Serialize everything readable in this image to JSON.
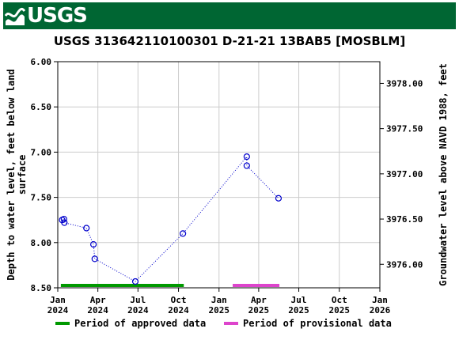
{
  "header": {
    "logo_text": "USGS",
    "brand_color": "#006633"
  },
  "chart_data": {
    "type": "scatter",
    "title": "USGS 313642110100301 D-21-21 13BAB5 [MOSBLM]",
    "ylabel_left": "Depth to water level, feet below land surface",
    "ylabel_left_line1": "Depth to water level, feet below land",
    "ylabel_left_line2": "surface",
    "ylabel_right": "Groundwater level above NAVD 1988, feet",
    "ylim_left": [
      8.5,
      6.0
    ],
    "left_axis_inverted": true,
    "left_ticks": [
      "6.00",
      "6.50",
      "7.00",
      "7.50",
      "8.00",
      "8.50"
    ],
    "right_ticks": [
      "3978.00",
      "3977.50",
      "3977.00",
      "3976.50",
      "3976.00"
    ],
    "right_tick_values": [
      3978.0,
      3977.5,
      3977.0,
      3976.5,
      3976.0
    ],
    "x_ticks": [
      {
        "month": "Jan",
        "year": "2024",
        "date": "2024-01-01"
      },
      {
        "month": "Apr",
        "year": "2024",
        "date": "2024-04-01"
      },
      {
        "month": "Jul",
        "year": "2024",
        "date": "2024-07-01"
      },
      {
        "month": "Oct",
        "year": "2024",
        "date": "2024-10-01"
      },
      {
        "month": "Jan",
        "year": "2025",
        "date": "2025-01-01"
      },
      {
        "month": "Apr",
        "year": "2025",
        "date": "2025-04-01"
      },
      {
        "month": "Jul",
        "year": "2025",
        "date": "2025-07-01"
      },
      {
        "month": "Oct",
        "year": "2025",
        "date": "2025-10-01"
      },
      {
        "month": "Jan",
        "year": "2026",
        "date": "2026-01-01"
      }
    ],
    "xlim": [
      "2024-01-01",
      "2026-01-01"
    ],
    "grid": true,
    "series": [
      {
        "marker": "open-circle",
        "line": "dotted",
        "color": "#0000cc",
        "points": [
          {
            "date": "2024-01-11",
            "depth": 7.75
          },
          {
            "date": "2024-01-15",
            "depth": 7.74
          },
          {
            "date": "2024-01-16",
            "depth": 7.78
          },
          {
            "date": "2024-03-06",
            "depth": 7.84
          },
          {
            "date": "2024-03-22",
            "depth": 8.02
          },
          {
            "date": "2024-03-25",
            "depth": 8.18
          },
          {
            "date": "2024-06-25",
            "depth": 8.43
          },
          {
            "date": "2024-10-11",
            "depth": 7.9
          },
          {
            "date": "2025-03-05",
            "depth": 7.05
          },
          {
            "date": "2025-03-05",
            "depth": 7.15
          },
          {
            "date": "2025-05-16",
            "depth": 7.51
          }
        ]
      }
    ],
    "periods": [
      {
        "kind": "approved",
        "start": "2024-01-08",
        "end": "2024-10-13",
        "color": "#009900"
      },
      {
        "kind": "provisional",
        "start": "2025-02-01",
        "end": "2025-05-18",
        "color": "#dd44cc"
      }
    ],
    "legend": {
      "placement": "bottom",
      "approved_label": "Period of approved data",
      "provisional_label": "Period of provisional data",
      "approved_color": "#009900",
      "provisional_color": "#dd44cc"
    }
  }
}
